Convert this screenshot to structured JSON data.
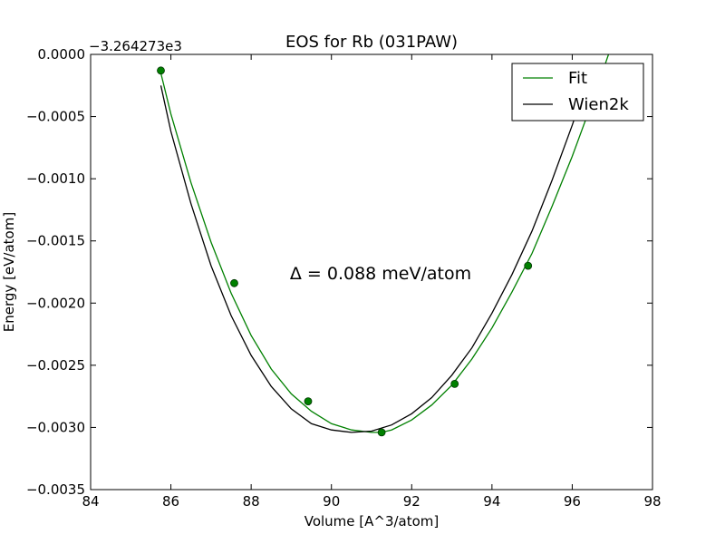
{
  "chart_data": {
    "type": "line",
    "title": "EOS for Rb (031PAW)",
    "xlabel": "Volume [A^3/atom]",
    "ylabel": "Energy [eV/atom]",
    "y_offset_label": "−3.264273e3",
    "xlim": [
      84,
      98
    ],
    "ylim": [
      -0.0035,
      0.0
    ],
    "x_ticks": [
      84,
      86,
      88,
      90,
      92,
      94,
      96,
      98
    ],
    "x_tick_labels": [
      "84",
      "86",
      "88",
      "90",
      "92",
      "94",
      "96",
      "98"
    ],
    "y_ticks": [
      0.0,
      -0.0005,
      -0.001,
      -0.0015,
      -0.002,
      -0.0025,
      -0.003,
      -0.0035
    ],
    "y_tick_labels": [
      "0.0000",
      "−0.0005",
      "−0.0010",
      "−0.0015",
      "−0.0020",
      "−0.0025",
      "−0.0030",
      "−0.0035"
    ],
    "grid": false,
    "legend_position": "top-right",
    "annotation": "Δ = 0.088 meV/atom",
    "series": [
      {
        "name": "Fit",
        "color": "#008000",
        "kind": "line",
        "x": [
          85.75,
          86.0,
          86.5,
          87.0,
          87.5,
          88.0,
          88.5,
          89.0,
          89.5,
          90.0,
          90.5,
          91.0,
          91.25,
          91.5,
          92.0,
          92.5,
          93.0,
          93.5,
          94.0,
          94.5,
          95.0,
          95.5,
          96.0,
          96.5,
          97.0
        ],
        "y": [
          -0.00015,
          -0.00048,
          -0.00103,
          -0.00151,
          -0.00192,
          -0.00226,
          -0.00253,
          -0.00273,
          -0.00287,
          -0.00297,
          -0.00302,
          -0.00304,
          -0.00304,
          -0.00302,
          -0.00294,
          -0.00282,
          -0.00266,
          -0.00245,
          -0.0022,
          -0.00191,
          -0.0016,
          -0.00122,
          -0.00082,
          -0.00038,
          9e-05
        ]
      },
      {
        "name": "Wien2k",
        "color": "#000000",
        "kind": "line",
        "x": [
          85.75,
          86.0,
          86.5,
          87.0,
          87.5,
          88.0,
          88.5,
          89.0,
          89.5,
          90.0,
          90.5,
          91.0,
          91.5,
          92.0,
          92.5,
          93.0,
          93.5,
          94.0,
          94.5,
          95.0,
          95.5,
          96.0,
          96.5
        ],
        "y": [
          -0.00025,
          -0.00062,
          -0.0012,
          -0.0017,
          -0.0021,
          -0.00242,
          -0.00267,
          -0.00285,
          -0.00297,
          -0.00302,
          -0.00304,
          -0.00303,
          -0.00298,
          -0.00289,
          -0.00276,
          -0.00258,
          -0.00236,
          -0.00208,
          -0.00177,
          -0.00142,
          -0.00101,
          -0.00057,
          -0.0001
        ]
      }
    ],
    "points": {
      "name": "data points",
      "color": "#008000",
      "x": [
        85.75,
        87.58,
        89.42,
        91.25,
        93.07,
        94.9
      ],
      "y": [
        -0.00013,
        -0.00184,
        -0.00279,
        -0.00304,
        -0.00265,
        -0.0017
      ]
    }
  }
}
